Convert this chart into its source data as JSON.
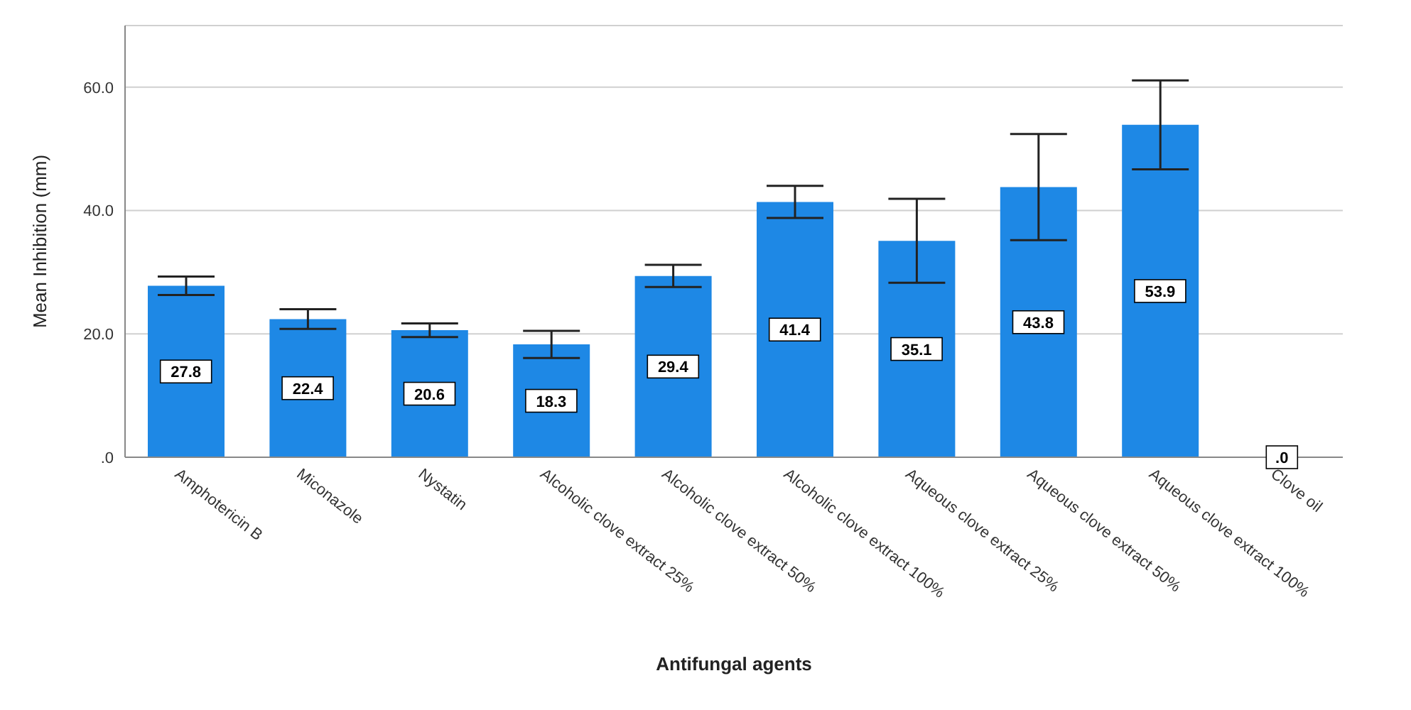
{
  "chart_data": {
    "type": "bar",
    "xlabel": "Antifungal agents",
    "ylabel": "Mean Inhibition (mm)",
    "categories": [
      "Amphotericin B",
      "Miconazole",
      "Nystatin",
      "Alcoholic clove extract 25%",
      "Alcoholic clove extract 50%",
      "Alcoholic clove extract 100%",
      "Aqueous clove extract 25%",
      "Aqueous clove extract 50%",
      "Aqueous clove extract 100%",
      "Clove oil"
    ],
    "values": [
      27.8,
      22.4,
      20.6,
      18.3,
      29.4,
      41.4,
      35.1,
      43.8,
      53.9,
      0
    ],
    "errors": [
      1.5,
      1.6,
      1.1,
      2.2,
      1.8,
      2.6,
      6.8,
      8.6,
      7.2,
      null
    ],
    "value_labels": [
      "27.8",
      "22.4",
      "20.6",
      "18.3",
      "29.4",
      "41.4",
      "35.1",
      "43.8",
      "53.9",
      ".0"
    ],
    "color": "#1e88e5",
    "ylim": [
      0,
      70
    ],
    "yticks": [
      {
        "value": 0,
        "label": ".0"
      },
      {
        "value": 20,
        "label": "20.0"
      },
      {
        "value": 40,
        "label": "40.0"
      },
      {
        "value": 60,
        "label": "60.0"
      }
    ],
    "grid": "y"
  }
}
